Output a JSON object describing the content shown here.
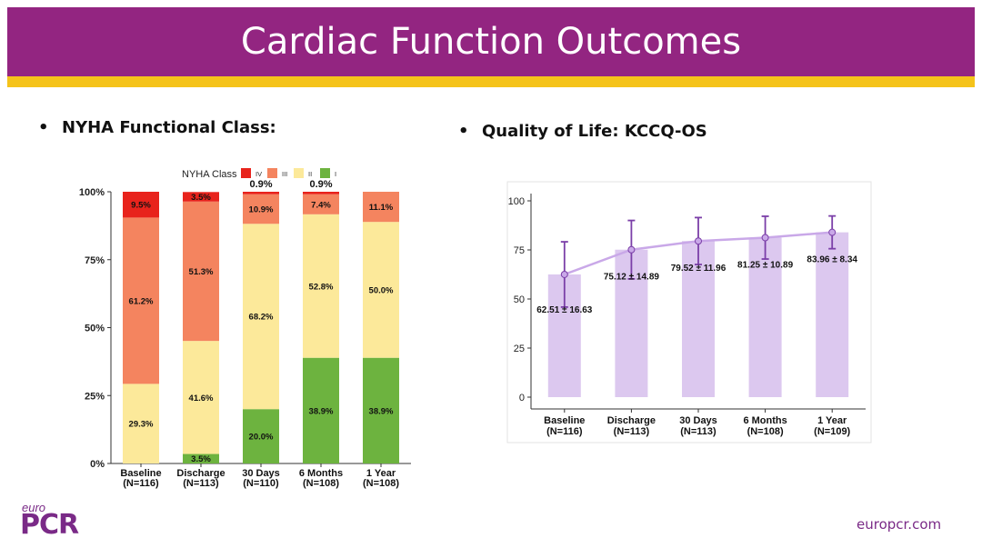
{
  "slide": {
    "title": "Cardiac Function Outcomes",
    "left_heading": "NYHA Functional Class:",
    "right_heading": "Quality of Life: KCCQ-OS",
    "bullet_char": "•",
    "logo_small": "euro",
    "logo_big": "PCR",
    "footer_url": "europcr.com"
  },
  "colors": {
    "header": "#932581",
    "accent_bar": "#f5c31a",
    "class_IV": "#e8231c",
    "class_III": "#f4845f",
    "class_II": "#fce99a",
    "class_I": "#6db33f",
    "kccq_bar": "#dcc8ef",
    "kccq_line": "#c9a8e8",
    "kccq_point": "#7b3fa8"
  },
  "chart_data": [
    {
      "type": "bar",
      "stacked": true,
      "title": "",
      "legend_title": "NYHA Class",
      "legend_position": "top",
      "categories": [
        "Baseline",
        "Discharge",
        "30 Days",
        "6 Months",
        "1 Year"
      ],
      "category_n": [
        "(N=116)",
        "(N=113)",
        "(N=110)",
        "(N=108)",
        "(N=108)"
      ],
      "y_ticks": [
        "0%",
        "25%",
        "50%",
        "75%",
        "100%"
      ],
      "ylim": [
        0,
        100
      ],
      "series": [
        {
          "name": "I",
          "values": [
            0,
            3.5,
            20.0,
            38.9,
            38.9
          ],
          "labels": [
            "",
            "3.5%",
            "20.0%",
            "38.9%",
            "38.9%"
          ]
        },
        {
          "name": "II",
          "values": [
            29.3,
            41.6,
            68.2,
            52.8,
            50.0
          ],
          "labels": [
            "29.3%",
            "41.6%",
            "68.2%",
            "52.8%",
            "50.0%"
          ]
        },
        {
          "name": "III",
          "values": [
            61.2,
            51.3,
            10.9,
            7.4,
            11.1
          ],
          "labels": [
            "61.2%",
            "51.3%",
            "10.9%",
            "7.4%",
            "11.1%"
          ]
        },
        {
          "name": "IV",
          "values": [
            9.5,
            3.5,
            0.9,
            0.9,
            0
          ],
          "labels": [
            "9.5%",
            "3.5%",
            "0.9%",
            "0.9%",
            ""
          ]
        }
      ],
      "legend_order": [
        "IV",
        "III",
        "II",
        "I"
      ]
    },
    {
      "type": "bar",
      "overlay": "line",
      "title": "",
      "categories": [
        "Baseline",
        "Discharge",
        "30 Days",
        "6 Months",
        "1 Year"
      ],
      "category_n": [
        "(N=116)",
        "(N=113)",
        "(N=113)",
        "(N=108)",
        "(N=109)"
      ],
      "values": [
        62.51,
        75.12,
        79.52,
        81.25,
        83.96
      ],
      "sd": [
        16.63,
        14.89,
        11.96,
        10.89,
        8.34
      ],
      "labels": [
        "62.51 ± 16.63",
        "75.12 ± 14.89",
        "79.52 ± 11.96",
        "81.25 ± 10.89",
        "83.96 ± 8.34"
      ],
      "y_ticks": [
        "0",
        "25",
        "50",
        "75",
        "100"
      ],
      "ylim": [
        0,
        100
      ],
      "grid": false
    }
  ]
}
